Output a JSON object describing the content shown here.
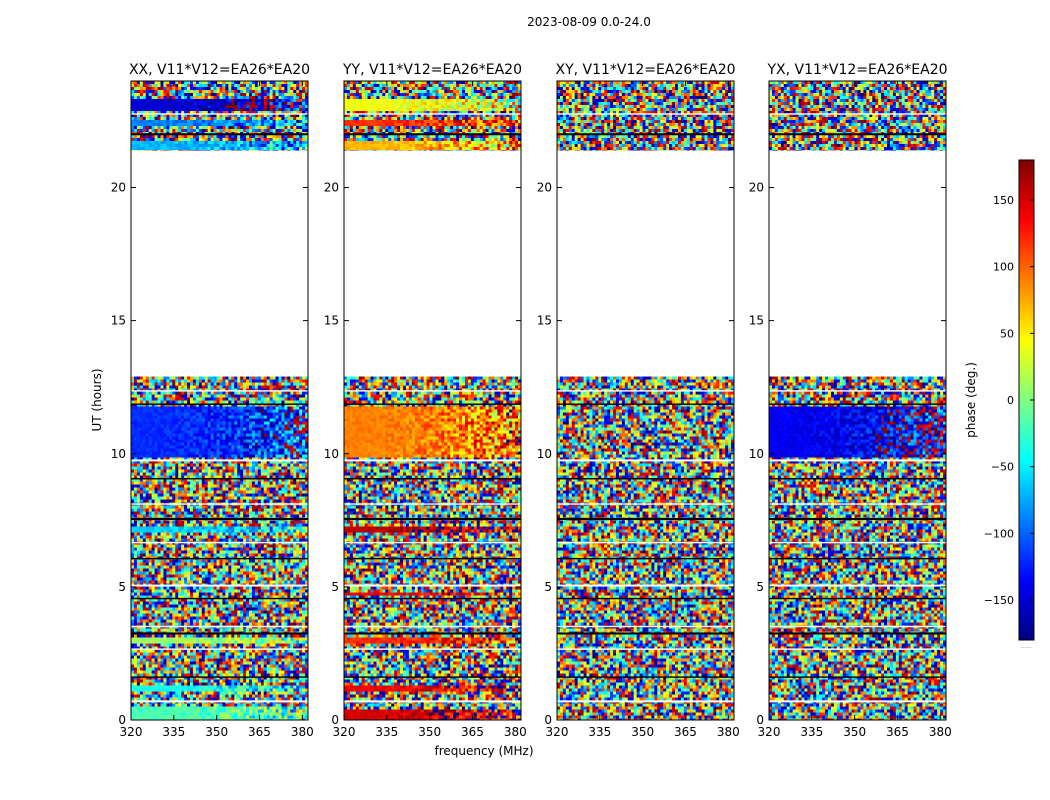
{
  "figure": {
    "suptitle": "2023-08-09 0.0-24.0",
    "xlabel": "frequency (MHz)",
    "ylabel": "UT (hours)"
  },
  "colorbar": {
    "label": "phase (deg.)",
    "ticks": [
      "150",
      "100",
      "50",
      "0",
      "−50",
      "−100",
      "−150"
    ],
    "tick_values": [
      150,
      100,
      50,
      0,
      -50,
      -100,
      -150
    ],
    "range": [
      -180,
      180
    ],
    "footnote": "......",
    "colormap": [
      "#00007f",
      "#0000ff",
      "#007fff",
      "#00ffff",
      "#7fff7f",
      "#ffff00",
      "#ff7f00",
      "#ff0000",
      "#7f0000"
    ]
  },
  "chart_data": [
    {
      "type": "heatmap",
      "title": "XX, V11*V12=EA26*EA20",
      "xlabel": "frequency (MHz)",
      "ylabel": "UT (hours)",
      "xlim": [
        320,
        382
      ],
      "ylim": [
        0,
        24
      ],
      "xticks": [
        "320",
        "335",
        "350",
        "365",
        "380"
      ],
      "xtick_values": [
        320,
        335,
        350,
        365,
        380
      ],
      "yticks": [
        "0",
        "5",
        "10",
        "15",
        "20"
      ],
      "ytick_values": [
        0,
        5,
        10,
        15,
        20
      ],
      "data_ranges_hours": [
        [
          0,
          12.9
        ],
        [
          21.4,
          24
        ]
      ],
      "coherent_bands": [
        {
          "t0": 0.05,
          "t1": 0.55,
          "phase": -20
        },
        {
          "t0": 1.1,
          "t1": 1.4,
          "phase": -40
        },
        {
          "t0": 2.9,
          "t1": 3.1,
          "phase": 10
        },
        {
          "t0": 7.1,
          "t1": 7.35,
          "phase": -60
        },
        {
          "t0": 9.9,
          "t1": 11.8,
          "phase": -120
        },
        {
          "t0": 21.45,
          "t1": 21.75,
          "phase": -70
        },
        {
          "t0": 22.4,
          "t1": 22.6,
          "phase": -90
        },
        {
          "t0": 22.95,
          "t1": 23.35,
          "phase": -150
        }
      ]
    },
    {
      "type": "heatmap",
      "title": "YY, V11*V12=EA26*EA20",
      "xlabel": "frequency (MHz)",
      "ylabel": "UT (hours)",
      "xlim": [
        320,
        382
      ],
      "ylim": [
        0,
        24
      ],
      "xticks": [
        "320",
        "335",
        "350",
        "365",
        "380"
      ],
      "xtick_values": [
        320,
        335,
        350,
        365,
        380
      ],
      "yticks": [
        "0",
        "5",
        "10",
        "15",
        "20"
      ],
      "ytick_values": [
        0,
        5,
        10,
        15,
        20
      ],
      "data_ranges_hours": [
        [
          0,
          12.9
        ],
        [
          21.4,
          24
        ]
      ],
      "coherent_bands": [
        {
          "t0": 0.05,
          "t1": 0.4,
          "phase": 150
        },
        {
          "t0": 1.1,
          "t1": 1.3,
          "phase": 140
        },
        {
          "t0": 2.9,
          "t1": 3.1,
          "phase": 120
        },
        {
          "t0": 4.7,
          "t1": 4.9,
          "phase": 140
        },
        {
          "t0": 7.1,
          "t1": 7.35,
          "phase": 160
        },
        {
          "t0": 9.9,
          "t1": 11.8,
          "phase": 90
        },
        {
          "t0": 21.45,
          "t1": 21.75,
          "phase": 70
        },
        {
          "t0": 22.4,
          "t1": 22.6,
          "phase": 120
        },
        {
          "t0": 22.95,
          "t1": 23.35,
          "phase": 40
        }
      ]
    },
    {
      "type": "heatmap",
      "title": "XY, V11*V12=EA26*EA20",
      "xlabel": "frequency (MHz)",
      "ylabel": "UT (hours)",
      "xlim": [
        320,
        382
      ],
      "ylim": [
        0,
        24
      ],
      "xticks": [
        "320",
        "335",
        "350",
        "365",
        "380"
      ],
      "xtick_values": [
        320,
        335,
        350,
        365,
        380
      ],
      "yticks": [
        "0",
        "5",
        "10",
        "15",
        "20"
      ],
      "ytick_values": [
        0,
        5,
        10,
        15,
        20
      ],
      "data_ranges_hours": [
        [
          0,
          12.9
        ],
        [
          21.4,
          24
        ]
      ],
      "coherent_bands": []
    },
    {
      "type": "heatmap",
      "title": "YX, V11*V12=EA26*EA20",
      "xlabel": "frequency (MHz)",
      "ylabel": "UT (hours)",
      "xlim": [
        320,
        382
      ],
      "ylim": [
        0,
        24
      ],
      "xticks": [
        "320",
        "335",
        "350",
        "365",
        "380"
      ],
      "xtick_values": [
        320,
        335,
        350,
        365,
        380
      ],
      "yticks": [
        "0",
        "5",
        "10",
        "15",
        "20"
      ],
      "ytick_values": [
        0,
        5,
        10,
        15,
        20
      ],
      "data_ranges_hours": [
        [
          0,
          12.9
        ],
        [
          21.4,
          24
        ]
      ],
      "coherent_bands": [
        {
          "t0": 9.9,
          "t1": 11.8,
          "phase": -140
        }
      ]
    }
  ]
}
